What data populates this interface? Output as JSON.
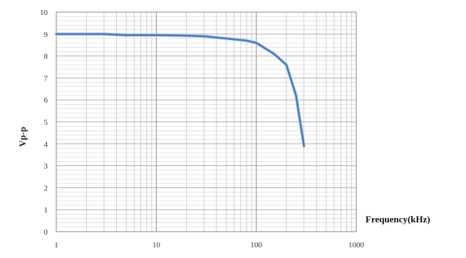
{
  "chart_data": {
    "type": "line",
    "title": "",
    "xlabel": "Frequency(kHz)",
    "ylabel": "Vp-p",
    "x_scale": "log",
    "xlim": [
      1,
      1000
    ],
    "ylim": [
      0,
      10
    ],
    "x_ticks": [
      1,
      10,
      100,
      1000
    ],
    "y_ticks": [
      0,
      1,
      2,
      3,
      4,
      5,
      6,
      7,
      8,
      9,
      10
    ],
    "grid": true,
    "legend": "none",
    "series": [
      {
        "color": "#4a7ab8",
        "points": [
          [
            1,
            9.0
          ],
          [
            2,
            9.0
          ],
          [
            3,
            9.0
          ],
          [
            5,
            8.95
          ],
          [
            10,
            8.95
          ],
          [
            20,
            8.93
          ],
          [
            30,
            8.9
          ],
          [
            50,
            8.8
          ],
          [
            80,
            8.7
          ],
          [
            100,
            8.6
          ],
          [
            150,
            8.1
          ],
          [
            200,
            7.6
          ],
          [
            250,
            6.2
          ],
          [
            300,
            3.9
          ]
        ]
      }
    ]
  }
}
